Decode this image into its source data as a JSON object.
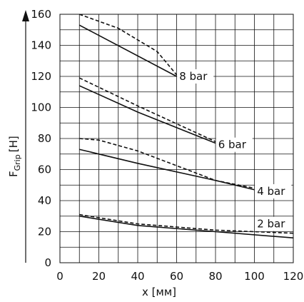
{
  "chart_data": {
    "type": "line",
    "xlabel": "x [мм]",
    "ylabel_main": "F",
    "ylabel_sub": "Grip",
    "ylabel_unit": "[H]",
    "xlim": [
      0,
      120
    ],
    "ylim": [
      0,
      160
    ],
    "x_ticks": [
      0,
      20,
      40,
      60,
      80,
      100,
      120
    ],
    "y_ticks": [
      0,
      20,
      40,
      60,
      80,
      100,
      120,
      140,
      160
    ],
    "grid": true,
    "series": [
      {
        "name": "8 bar",
        "style": "solid",
        "x": [
          10,
          60
        ],
        "y": [
          153,
          120
        ]
      },
      {
        "name": "8 bar",
        "style": "dashed",
        "x": [
          10,
          30,
          50,
          60
        ],
        "y": [
          160,
          151,
          136,
          121
        ]
      },
      {
        "name": "6 bar",
        "style": "solid",
        "x": [
          10,
          40,
          80
        ],
        "y": [
          114,
          97,
          77
        ]
      },
      {
        "name": "6 bar",
        "style": "dashed",
        "x": [
          10,
          40,
          80
        ],
        "y": [
          119,
          101,
          78
        ]
      },
      {
        "name": "4 bar",
        "style": "solid",
        "x": [
          10,
          40,
          80,
          100
        ],
        "y": [
          73,
          64,
          53,
          47
        ]
      },
      {
        "name": "4 bar",
        "style": "dashed",
        "x": [
          10,
          20,
          40,
          80,
          100
        ],
        "y": [
          80,
          79,
          72,
          53,
          48
        ]
      },
      {
        "name": "2 bar",
        "style": "solid",
        "x": [
          10,
          40,
          80,
          120
        ],
        "y": [
          30,
          24,
          20,
          16
        ]
      },
      {
        "name": "2 bar",
        "style": "dashed",
        "x": [
          10,
          40,
          80,
          120
        ],
        "y": [
          31,
          25,
          21,
          19
        ]
      }
    ],
    "labels": [
      {
        "text": "8 bar",
        "x": 61,
        "y": 120
      },
      {
        "text": "6 bar",
        "x": 81,
        "y": 76
      },
      {
        "text": "4 bar",
        "x": 101,
        "y": 46
      },
      {
        "text": "2 bar",
        "x": 101,
        "y": 25
      }
    ]
  }
}
